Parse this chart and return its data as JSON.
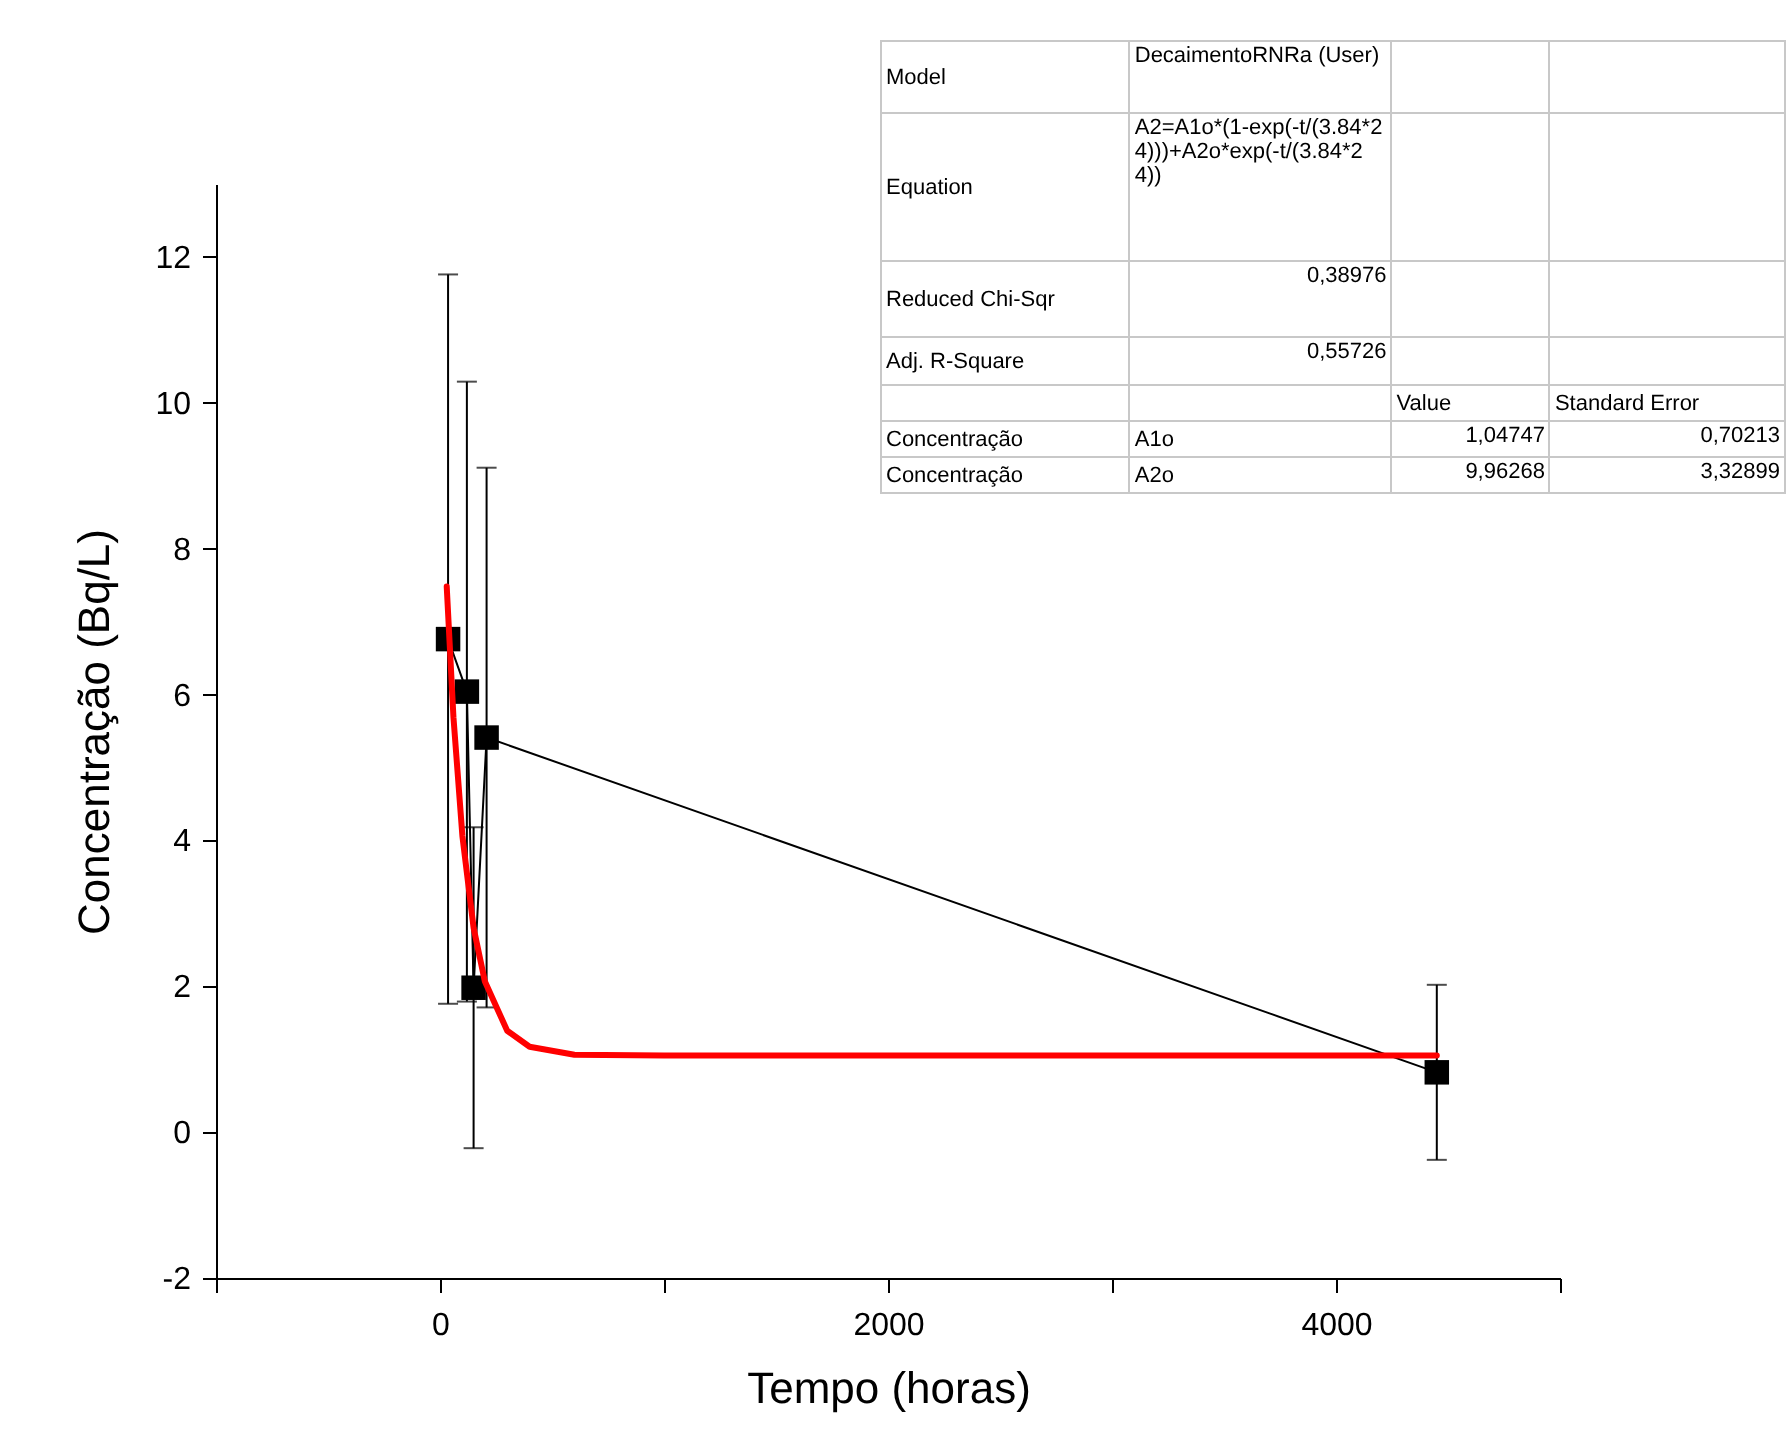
{
  "chart_data": {
    "type": "line",
    "xlabel": "Tempo (horas)",
    "ylabel": "Concentração (Bq/L)",
    "xlim": [
      -1000,
      5000
    ],
    "xticks": [
      {
        "value": -1000,
        "label": null
      },
      0,
      {
        "value": 1000,
        "label": null
      },
      2000,
      {
        "value": 3000,
        "label": null
      },
      4000,
      {
        "value": 5000,
        "label": null
      }
    ],
    "ylim": [
      -2,
      13
    ],
    "yticks": [
      -2,
      0,
      2,
      4,
      6,
      8,
      10,
      12
    ],
    "grid": false,
    "series": [
      {
        "color": "#000000",
        "marker": "square",
        "x": [
          36,
          120,
          150,
          208,
          4450
        ],
        "values": [
          6.76,
          6.04,
          1.98,
          5.41,
          0.82
        ],
        "errors": [
          5.0,
          4.25,
          2.2,
          3.7,
          1.2
        ]
      },
      {
        "color": "#ff0000",
        "marker": "none",
        "x": [
          30,
          60,
          100,
          150,
          200,
          300,
          400,
          600,
          1000,
          4450
        ],
        "values": [
          7.48,
          5.69,
          4.06,
          2.8,
          2.07,
          1.39,
          1.17,
          1.06,
          1.05,
          1.05
        ]
      }
    ],
    "annotations": [
      "Model",
      "DecaimentoRNRa (User)",
      "Equation",
      "A2=A1o*(1-exp(-t/(3.84*24)))+A2o*exp(-t/(3.84*24))",
      "Reduced Chi-Sqr",
      "0,38976",
      "Adj. R-Square",
      "0,55726",
      "Value",
      "Standard Error",
      "Concentração",
      "A1o",
      "1,04747",
      "0,70213",
      "Concentração",
      "A2o",
      "9,96268",
      "3,32899"
    ]
  }
}
